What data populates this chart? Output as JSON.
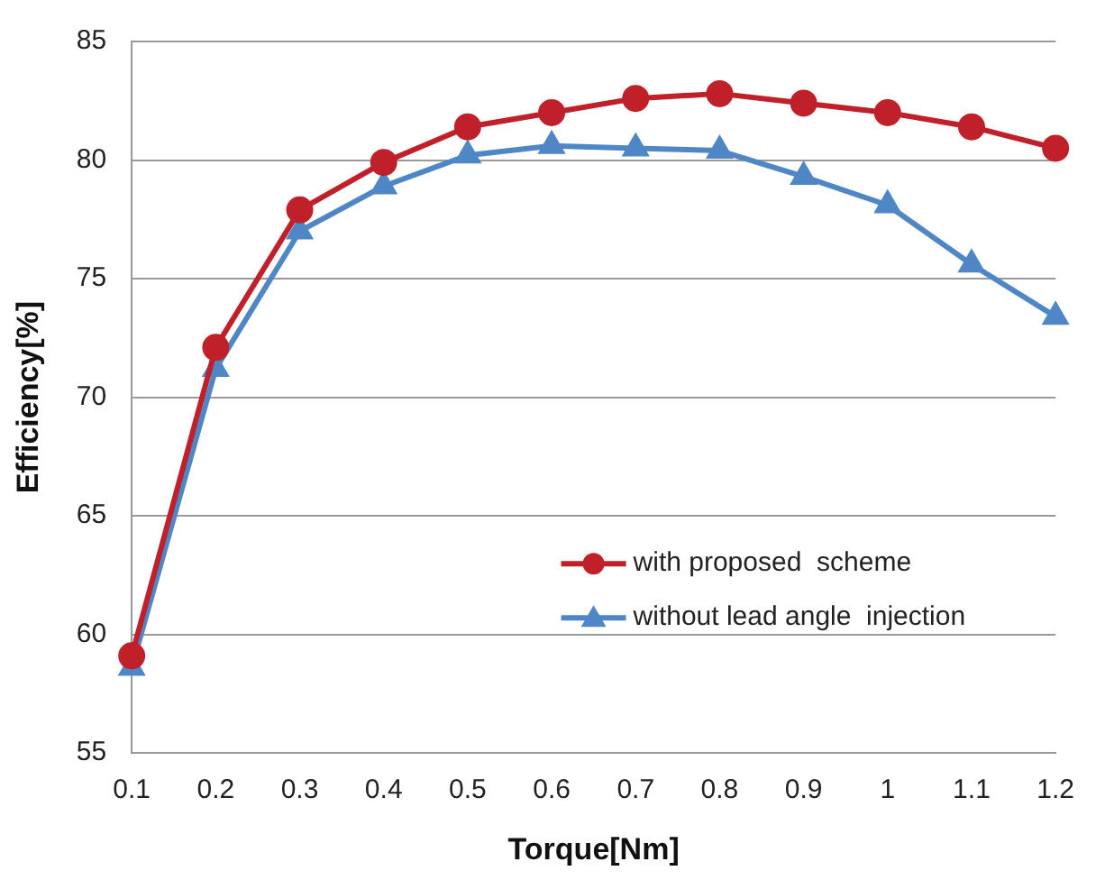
{
  "chart_data": {
    "type": "line",
    "xlabel": "Torque[Nm]",
    "ylabel": "Efficiency[%]",
    "categories": [
      "0.1",
      "0.2",
      "0.3",
      "0.4",
      "0.5",
      "0.6",
      "0.7",
      "0.8",
      "0.9",
      "1",
      "1.1",
      "1.2"
    ],
    "series": [
      {
        "name": "with proposed  scheme",
        "color": "#c0202a",
        "marker": "circle",
        "values": [
          59.1,
          72.1,
          77.9,
          79.9,
          81.4,
          82.0,
          82.6,
          82.8,
          82.4,
          82.0,
          81.4,
          80.5
        ]
      },
      {
        "name": "without lead angle  injection",
        "color": "#4f87c6",
        "marker": "triangle",
        "values": [
          58.6,
          71.2,
          77.0,
          78.9,
          80.2,
          80.6,
          80.5,
          80.4,
          79.3,
          78.1,
          75.6,
          73.4
        ]
      }
    ],
    "ylim": [
      55,
      85
    ],
    "yticks": [
      55,
      60,
      65,
      70,
      75,
      80,
      85
    ],
    "grid": "y",
    "legend": "bottom right",
    "line_style": "solid"
  }
}
